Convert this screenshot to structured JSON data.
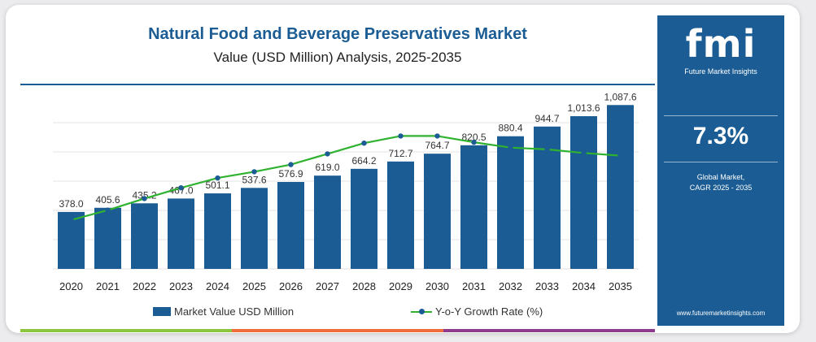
{
  "title": "Natural Food and Beverage Preservatives Market",
  "subtitle": "Value (USD Million) Analysis, 2025-2035",
  "legend": {
    "bar_label": "Market Value USD Million",
    "line_label": "Y-o-Y Growth Rate (%)"
  },
  "colors": {
    "bar": "#1a5c93",
    "line": "#2fb22f",
    "marker": "#1a5c93",
    "stripe_green": "#8cc63f",
    "stripe_orange": "#f26b3a",
    "stripe_purple": "#8e3b8f"
  },
  "brand": {
    "logo": "fmi",
    "logo_sub": "Future Market Insights",
    "cagr_value": "7.3%",
    "cagr_label_line1": "Global Market,",
    "cagr_label_line2": "CAGR 2025 - 2035",
    "website": "www.futuremarketinsights.com"
  },
  "chart_data": {
    "type": "bar",
    "title": "Natural Food and Beverage Preservatives Market",
    "subtitle": "Value (USD Million) Analysis, 2025-2035",
    "categories": [
      "2020",
      "2021",
      "2022",
      "2023",
      "2024",
      "2025",
      "2026",
      "2027",
      "2028",
      "2029",
      "2030",
      "2031",
      "2032",
      "2033",
      "2034",
      "2035"
    ],
    "series": [
      {
        "name": "Market Value USD Million",
        "type": "bar",
        "values": [
          378.0,
          405.6,
          435.2,
          467.0,
          501.1,
          537.6,
          576.9,
          619.0,
          664.2,
          712.7,
          764.7,
          820.5,
          880.4,
          944.7,
          1013.6,
          1087.6
        ],
        "labels": [
          "378.0",
          "405.6",
          "435.2",
          "467.0",
          "501.1",
          "537.6",
          "576.9",
          "619.0",
          "664.2",
          "712.7",
          "764.7",
          "820.5",
          "880.4",
          "944.7",
          "1,013.6",
          "1,087.6"
        ]
      },
      {
        "name": "Y-o-Y Growth Rate (%)",
        "type": "line",
        "values": [
          6.2,
          7.3,
          8.6,
          9.8,
          10.9,
          11.6,
          12.4,
          13.6,
          14.8,
          15.6,
          15.6,
          14.9,
          14.3,
          14.1,
          13.7,
          13.4
        ]
      }
    ],
    "ylim": [
      0,
      1100
    ],
    "line_ylim": [
      0,
      20
    ],
    "grid": true,
    "legend_position": "bottom"
  }
}
